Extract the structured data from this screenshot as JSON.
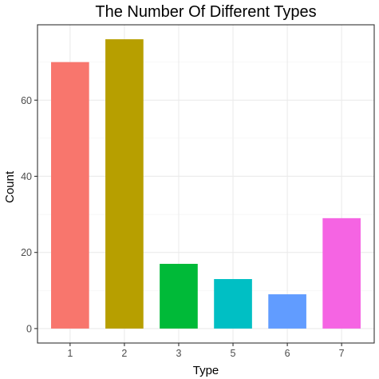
{
  "chart_data": {
    "type": "bar",
    "title": "The Number Of Different Types",
    "xlabel": "Type",
    "ylabel": "Count",
    "categories": [
      "1",
      "2",
      "3",
      "5",
      "6",
      "7"
    ],
    "values": [
      70,
      76,
      17,
      13,
      9,
      29
    ],
    "colors": [
      "#F8766D",
      "#B79F00",
      "#00BA38",
      "#00BFC4",
      "#619CFF",
      "#F564E3"
    ],
    "yticks": [
      0,
      20,
      40,
      60
    ],
    "ylim": [
      -3.8,
      79.8
    ],
    "grid": true,
    "legend": "none"
  }
}
